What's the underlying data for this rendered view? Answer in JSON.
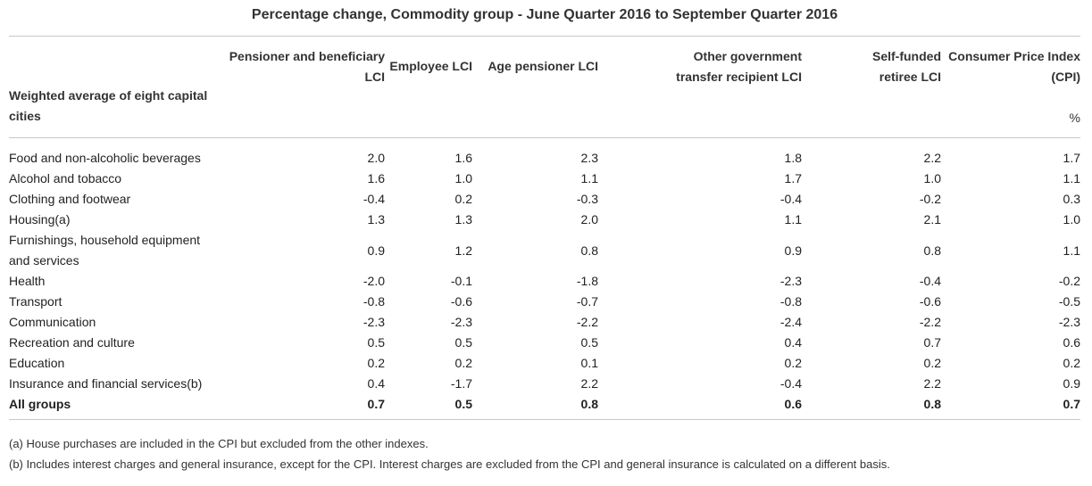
{
  "title": "Percentage change, Commodity group - June Quarter 2016 to September Quarter 2016",
  "columns": {
    "stub": "Weighted average of eight capital cities",
    "c1": "Pensioner and beneficiary LCI",
    "c2": "Employee LCI",
    "c3": "Age pensioner LCI",
    "c4": "Other government transfer recipient LCI",
    "c5": "Self-funded retiree LCI",
    "c6": "Consumer Price Index (CPI)",
    "unit": "%"
  },
  "rows": [
    {
      "label": "Food and non-alcoholic beverages",
      "values": [
        "2.0",
        "1.6",
        "2.3",
        "1.8",
        "2.2",
        "1.7"
      ]
    },
    {
      "label": "Alcohol and tobacco",
      "values": [
        "1.6",
        "1.0",
        "1.1",
        "1.7",
        "1.0",
        "1.1"
      ]
    },
    {
      "label": "Clothing and footwear",
      "values": [
        "-0.4",
        "0.2",
        "-0.3",
        "-0.4",
        "-0.2",
        "0.3"
      ]
    },
    {
      "label": "Housing(a)",
      "values": [
        "1.3",
        "1.3",
        "2.0",
        "1.1",
        "2.1",
        "1.0"
      ]
    },
    {
      "label": "Furnishings, household equipment and services",
      "values": [
        "0.9",
        "1.2",
        "0.8",
        "0.9",
        "0.8",
        "1.1"
      ]
    },
    {
      "label": "Health",
      "values": [
        "-2.0",
        "-0.1",
        "-1.8",
        "-2.3",
        "-0.4",
        "-0.2"
      ]
    },
    {
      "label": "Transport",
      "values": [
        "-0.8",
        "-0.6",
        "-0.7",
        "-0.8",
        "-0.6",
        "-0.5"
      ]
    },
    {
      "label": "Communication",
      "values": [
        "-2.3",
        "-2.3",
        "-2.2",
        "-2.4",
        "-2.2",
        "-2.3"
      ]
    },
    {
      "label": "Recreation and culture",
      "values": [
        "0.5",
        "0.5",
        "0.5",
        "0.4",
        "0.7",
        "0.6"
      ]
    },
    {
      "label": "Education",
      "values": [
        "0.2",
        "0.2",
        "0.1",
        "0.2",
        "0.2",
        "0.2"
      ]
    },
    {
      "label": "Insurance and financial services(b)",
      "values": [
        "0.4",
        "-1.7",
        "2.2",
        "-0.4",
        "2.2",
        "0.9"
      ]
    },
    {
      "label": "All groups",
      "values": [
        "0.7",
        "0.5",
        "0.8",
        "0.6",
        "0.8",
        "0.7"
      ]
    }
  ],
  "notes": [
    "(a) House purchases are included in the CPI but excluded from the other indexes.",
    "(b) Includes interest charges and general insurance, except for the CPI. Interest charges are excluded from the CPI and general insurance is calculated on a different basis."
  ]
}
